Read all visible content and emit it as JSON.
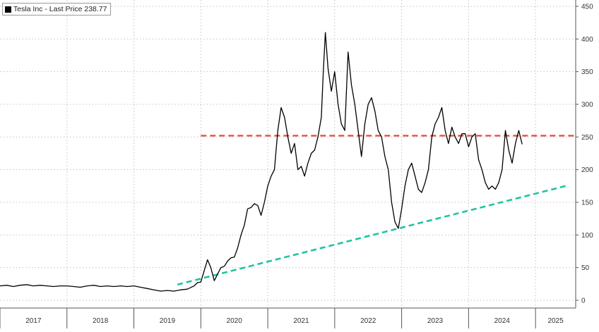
{
  "chart_data": {
    "type": "line",
    "title": "",
    "xlabel": "",
    "ylabel": "",
    "xlim": [
      2017.0,
      2025.6
    ],
    "ylim": [
      0,
      450
    ],
    "y_axis_position": "right",
    "grid": true,
    "legend": {
      "position": "top-left",
      "entries": [
        "Tesla Inc - Last Price 238.77"
      ]
    },
    "x_tick_labels": [
      "2017",
      "2018",
      "2019",
      "2020",
      "2021",
      "2022",
      "2023",
      "2024",
      "2025"
    ],
    "y_tick_labels": [
      0,
      50,
      100,
      150,
      200,
      250,
      300,
      350,
      400,
      450
    ],
    "series": [
      {
        "name": "Tesla Inc - Last Price 238.77",
        "color": "#000000",
        "x": [
          2017.0,
          2017.1,
          2017.2,
          2017.3,
          2017.4,
          2017.5,
          2017.6,
          2017.7,
          2017.8,
          2017.9,
          2018.0,
          2018.1,
          2018.2,
          2018.3,
          2018.4,
          2018.5,
          2018.6,
          2018.7,
          2018.8,
          2018.9,
          2019.0,
          2019.1,
          2019.2,
          2019.3,
          2019.4,
          2019.5,
          2019.6,
          2019.7,
          2019.8,
          2019.9,
          2019.95,
          2020.0,
          2020.05,
          2020.1,
          2020.15,
          2020.2,
          2020.25,
          2020.3,
          2020.35,
          2020.4,
          2020.45,
          2020.5,
          2020.55,
          2020.6,
          2020.65,
          2020.7,
          2020.75,
          2020.8,
          2020.85,
          2020.9,
          2020.95,
          2021.0,
          2021.05,
          2021.1,
          2021.15,
          2021.2,
          2021.25,
          2021.3,
          2021.35,
          2021.4,
          2021.45,
          2021.5,
          2021.55,
          2021.6,
          2021.65,
          2021.7,
          2021.75,
          2021.8,
          2021.83,
          2021.86,
          2021.9,
          2021.95,
          2022.0,
          2022.05,
          2022.1,
          2022.15,
          2022.2,
          2022.25,
          2022.3,
          2022.35,
          2022.4,
          2022.45,
          2022.5,
          2022.55,
          2022.6,
          2022.65,
          2022.7,
          2022.75,
          2022.8,
          2022.85,
          2022.9,
          2022.95,
          2023.0,
          2023.05,
          2023.1,
          2023.15,
          2023.2,
          2023.25,
          2023.3,
          2023.35,
          2023.4,
          2023.45,
          2023.5,
          2023.55,
          2023.6,
          2023.65,
          2023.7,
          2023.75,
          2023.8,
          2023.85,
          2023.9,
          2023.95,
          2024.0,
          2024.05,
          2024.1,
          2024.15,
          2024.2,
          2024.25,
          2024.3,
          2024.35,
          2024.4,
          2024.45,
          2024.5,
          2024.55,
          2024.6,
          2024.65,
          2024.7,
          2024.75,
          2024.8
        ],
        "y": [
          22,
          23,
          21,
          23,
          24,
          22,
          23,
          22,
          21,
          22,
          22,
          21,
          20,
          22,
          23,
          21,
          22,
          21,
          22,
          21,
          22,
          20,
          18,
          16,
          14,
          15,
          14,
          16,
          17,
          22,
          27,
          28,
          45,
          62,
          50,
          30,
          40,
          50,
          52,
          60,
          65,
          66,
          80,
          100,
          115,
          140,
          142,
          148,
          145,
          130,
          150,
          175,
          190,
          200,
          260,
          295,
          280,
          250,
          225,
          240,
          200,
          205,
          190,
          210,
          225,
          230,
          250,
          280,
          350,
          410,
          355,
          320,
          350,
          300,
          270,
          260,
          380,
          330,
          300,
          260,
          220,
          270,
          300,
          310,
          290,
          260,
          250,
          220,
          200,
          150,
          120,
          110,
          140,
          175,
          200,
          210,
          190,
          170,
          165,
          180,
          200,
          250,
          270,
          280,
          295,
          260,
          240,
          265,
          250,
          240,
          255,
          255,
          235,
          250,
          255,
          215,
          200,
          180,
          170,
          175,
          170,
          180,
          200,
          260,
          230,
          210,
          240,
          260,
          238.77
        ]
      }
    ],
    "annotations": [
      {
        "type": "horizontal-dashed",
        "color": "#e8463a",
        "y": 252,
        "x_start": 2020.0,
        "x_end": 2025.6
      },
      {
        "type": "trend-dashed",
        "color": "#1fc4a0",
        "x1": 2019.65,
        "y1": 24,
        "x2": 2025.45,
        "y2": 175
      }
    ]
  }
}
